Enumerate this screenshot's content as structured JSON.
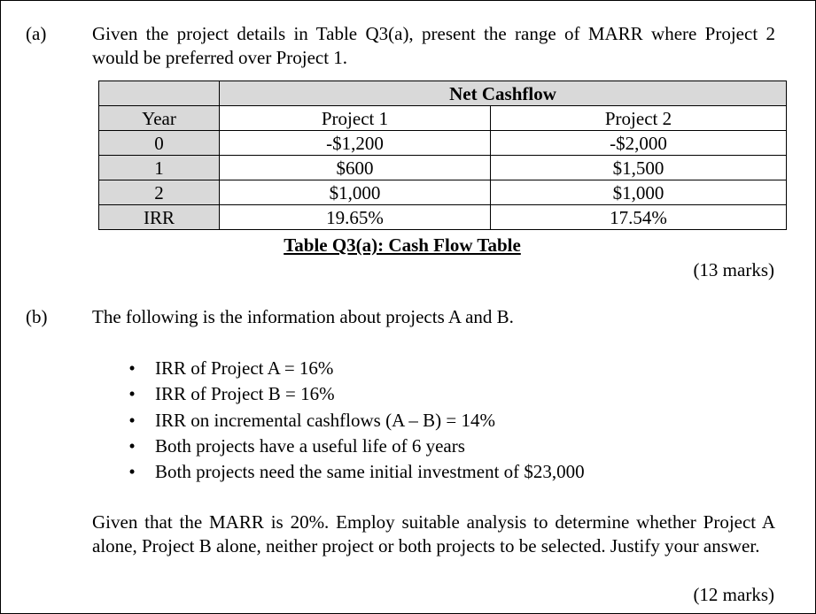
{
  "part_a": {
    "label": "(a)",
    "question": "Given the project details in Table Q3(a), present the range of MARR where Project 2 would be preferred over Project 1.",
    "table": {
      "group_header": "Net Cashflow",
      "columns": [
        "Year",
        "Project 1",
        "Project 2"
      ],
      "rows": [
        [
          "0",
          "-$1,200",
          "-$2,000"
        ],
        [
          "1",
          "$600",
          "$1,500"
        ],
        [
          "2",
          "$1,000",
          "$1,000"
        ],
        [
          "IRR",
          "19.65%",
          "17.54%"
        ]
      ],
      "caption": "Table Q3(a): Cash Flow Table"
    },
    "marks": "(13 marks)"
  },
  "part_b": {
    "label": "(b)",
    "intro": "The following is the information about projects A and B.",
    "bullets": [
      "IRR of Project A = 16%",
      "IRR of Project B = 16%",
      "IRR on incremental cashflows (A – B) = 14%",
      "Both projects have a useful life of 6 years",
      "Both projects need the same initial investment of $23,000"
    ],
    "question": "Given that the MARR is 20%. Employ suitable analysis to determine whether Project A alone, Project B alone, neither project or both projects to be selected. Justify your answer.",
    "marks": "(12 marks)"
  }
}
